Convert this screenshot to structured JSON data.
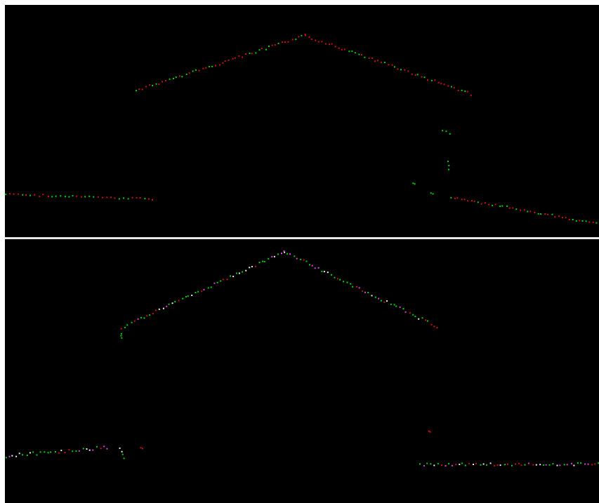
{
  "colors": {
    "background": "#000000",
    "frame": "#ffffff",
    "divider": "#e8e8e8",
    "green": "#00d400",
    "red": "#d01010",
    "magenta": "#e040e0",
    "white": "#f0f0f0"
  }
}
